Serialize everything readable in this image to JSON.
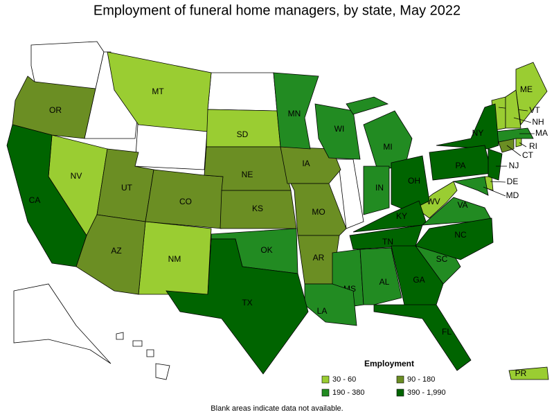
{
  "title": "Employment of funeral home managers, by state, May 2022",
  "footnote": "Blank areas indicate data not available.",
  "legend": {
    "title": "Employment",
    "bins": [
      {
        "label": "30 - 60",
        "color": "#9acd32",
        "states": [
          "MT",
          "SD",
          "NV",
          "NM",
          "WV",
          "ME",
          "VT",
          "NH",
          "RI",
          "DE",
          "PR"
        ]
      },
      {
        "label": "90 - 180",
        "color": "#6b8e23",
        "states": [
          "OR",
          "UT",
          "CO",
          "AZ",
          "NE",
          "KS",
          "IA",
          "MO",
          "AR",
          "CT"
        ]
      },
      {
        "label": "190 - 380",
        "color": "#228b22",
        "states": [
          "MN",
          "WI",
          "MI",
          "IN",
          "OK",
          "VA",
          "SC",
          "MS",
          "AL",
          "LA",
          "MA",
          "MD"
        ]
      },
      {
        "label": "390 - 1,990",
        "color": "#006400",
        "states": [
          "CA",
          "TX",
          "NY",
          "PA",
          "OH",
          "KY",
          "TN",
          "NC",
          "GA",
          "FL",
          "NJ"
        ]
      }
    ]
  }
}
